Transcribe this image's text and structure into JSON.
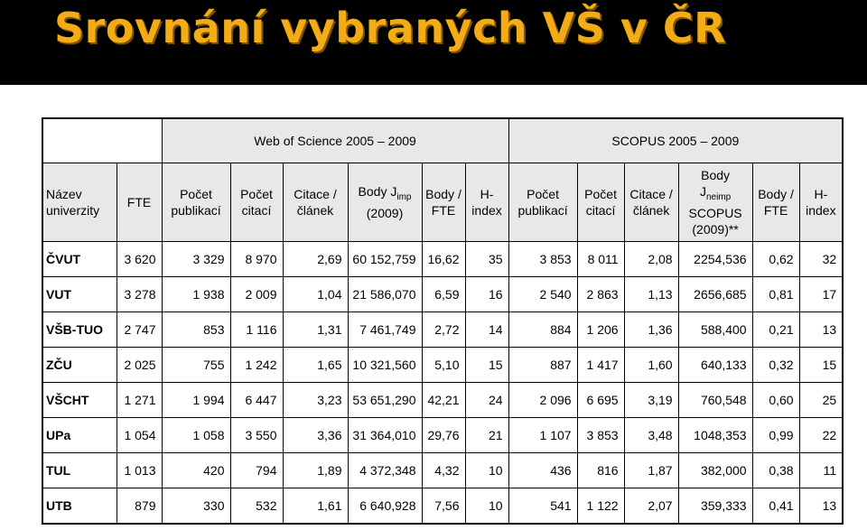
{
  "title": "Srovnání vybraných VŠ v ČR",
  "groups": {
    "wos": "Web of Science 2005 – 2009",
    "scopus": "SCOPUS 2005 – 2009"
  },
  "headers": {
    "name": "Název univerzity",
    "fte": "FTE",
    "wos_pubs": "Počet publikací",
    "wos_cites": "Počet citací",
    "wos_cpa": "Citace / článek",
    "wos_body_pre": "Body J",
    "wos_body_sub": "imp",
    "wos_body_post": "(2009)",
    "wos_bfte": "Body / FTE",
    "wos_h": "H-index",
    "sc_pubs": "Počet publikací",
    "sc_cites": "Počet citací",
    "sc_cpa": "Citace / článek",
    "sc_body_pre1": "Body",
    "sc_body_pre2": "J",
    "sc_body_sub": "neimp",
    "sc_body_post1": "SCOPUS",
    "sc_body_post2": "(2009)**",
    "sc_bfte": "Body / FTE",
    "sc_h": "H-index"
  },
  "rows": [
    {
      "name": "ČVUT",
      "fte": "3 620",
      "wos_pubs": "3 329",
      "wos_cites": "8 970",
      "wos_cpa": "2,69",
      "wos_body": "60 152,759",
      "wos_bfte": "16,62",
      "wos_h": "35",
      "sc_pubs": "3 853",
      "sc_cites": "8 011",
      "sc_cpa": "2,08",
      "sc_body": "2254,536",
      "sc_bfte": "0,62",
      "sc_h": "32"
    },
    {
      "name": "VUT",
      "fte": "3 278",
      "wos_pubs": "1 938",
      "wos_cites": "2 009",
      "wos_cpa": "1,04",
      "wos_body": "21 586,070",
      "wos_bfte": "6,59",
      "wos_h": "16",
      "sc_pubs": "2 540",
      "sc_cites": "2 863",
      "sc_cpa": "1,13",
      "sc_body": "2656,685",
      "sc_bfte": "0,81",
      "sc_h": "17"
    },
    {
      "name": "VŠB-TUO",
      "fte": "2 747",
      "wos_pubs": "853",
      "wos_cites": "1 116",
      "wos_cpa": "1,31",
      "wos_body": "7 461,749",
      "wos_bfte": "2,72",
      "wos_h": "14",
      "sc_pubs": "884",
      "sc_cites": "1 206",
      "sc_cpa": "1,36",
      "sc_body": "588,400",
      "sc_bfte": "0,21",
      "sc_h": "13"
    },
    {
      "name": "ZČU",
      "fte": "2 025",
      "wos_pubs": "755",
      "wos_cites": "1 242",
      "wos_cpa": "1,65",
      "wos_body": "10 321,560",
      "wos_bfte": "5,10",
      "wos_h": "15",
      "sc_pubs": "887",
      "sc_cites": "1 417",
      "sc_cpa": "1,60",
      "sc_body": "640,133",
      "sc_bfte": "0,32",
      "sc_h": "15"
    },
    {
      "name": "VŠCHT",
      "fte": "1 271",
      "wos_pubs": "1 994",
      "wos_cites": "6 447",
      "wos_cpa": "3,23",
      "wos_body": "53 651,290",
      "wos_bfte": "42,21",
      "wos_h": "24",
      "sc_pubs": "2 096",
      "sc_cites": "6 695",
      "sc_cpa": "3,19",
      "sc_body": "760,548",
      "sc_bfte": "0,60",
      "sc_h": "25"
    },
    {
      "name": "UPa",
      "fte": "1 054",
      "wos_pubs": "1 058",
      "wos_cites": "3 550",
      "wos_cpa": "3,36",
      "wos_body": "31 364,010",
      "wos_bfte": "29,76",
      "wos_h": "21",
      "sc_pubs": "1 107",
      "sc_cites": "3 853",
      "sc_cpa": "3,48",
      "sc_body": "1048,353",
      "sc_bfte": "0,99",
      "sc_h": "22"
    },
    {
      "name": "TUL",
      "fte": "1 013",
      "wos_pubs": "420",
      "wos_cites": "794",
      "wos_cpa": "1,89",
      "wos_body": "4 372,348",
      "wos_bfte": "4,32",
      "wos_h": "10",
      "sc_pubs": "436",
      "sc_cites": "816",
      "sc_cpa": "1,87",
      "sc_body": "382,000",
      "sc_bfte": "0,38",
      "sc_h": "11"
    },
    {
      "name": "UTB",
      "fte": "879",
      "wos_pubs": "330",
      "wos_cites": "532",
      "wos_cpa": "1,61",
      "wos_body": "6 640,928",
      "wos_bfte": "7,56",
      "wos_h": "10",
      "sc_pubs": "541",
      "sc_cites": "1 122",
      "sc_cpa": "2,07",
      "sc_body": "359,333",
      "sc_bfte": "0,41",
      "sc_h": "13"
    }
  ]
}
